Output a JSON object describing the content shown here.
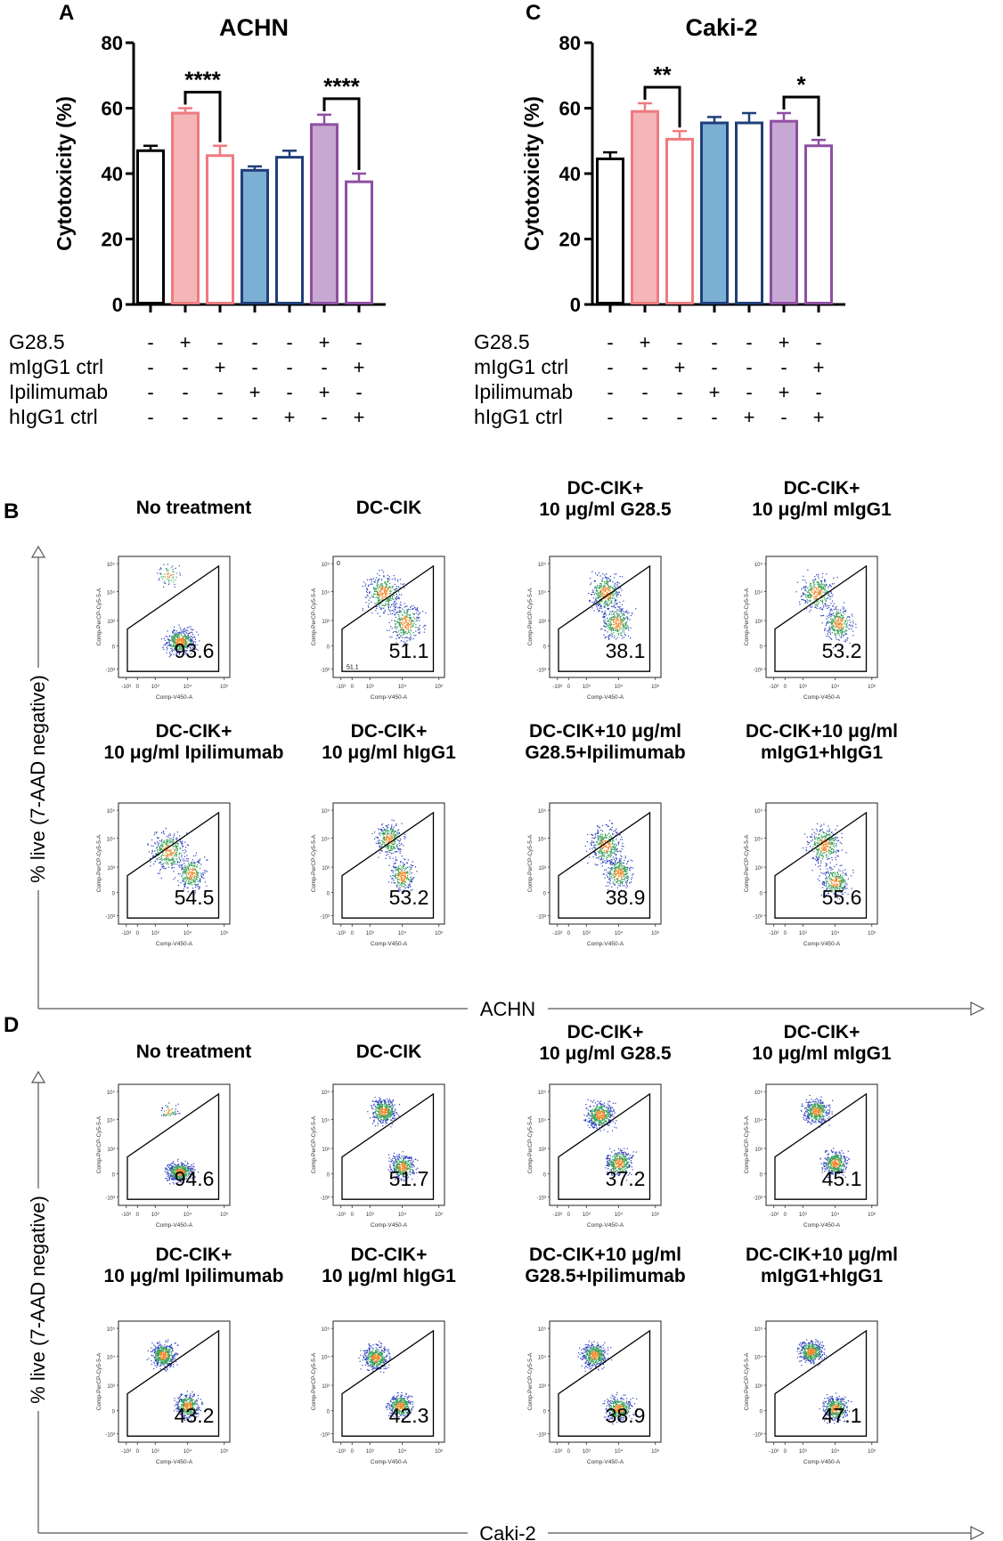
{
  "chart_data": [
    {
      "panel": "A",
      "type": "bar",
      "title": "ACHN",
      "ylabel": "Cytotoxicity (%)",
      "ylim": [
        0,
        80
      ],
      "yticks": [
        "0",
        "20",
        "40",
        "60",
        "80"
      ],
      "values": [
        47,
        58.5,
        45.5,
        41,
        45,
        55,
        37.5
      ],
      "errors": [
        1.5,
        1.5,
        3,
        1.2,
        2,
        3,
        2.5
      ],
      "bar_styles": [
        "open-black",
        "filled-pink",
        "open-pink",
        "filled-blue",
        "open-blue",
        "filled-purple",
        "open-purple"
      ],
      "significance": [
        {
          "from": 1,
          "to": 2,
          "label": "****"
        },
        {
          "from": 5,
          "to": 6,
          "label": "****"
        }
      ],
      "treatment_labels": [
        "G28.5",
        "mIgG1 ctrl",
        "Ipilimumab",
        "hIgG1 ctrl"
      ],
      "treatment_signs": [
        [
          "-",
          "+",
          "-",
          "-",
          "-",
          "+",
          "-"
        ],
        [
          "-",
          "-",
          "+",
          "-",
          "-",
          "-",
          "+"
        ],
        [
          "-",
          "-",
          "-",
          "+",
          "-",
          "+",
          "-"
        ],
        [
          "-",
          "-",
          "-",
          "-",
          "+",
          "-",
          "+"
        ]
      ]
    },
    {
      "panel": "C",
      "type": "bar",
      "title": "Caki-2",
      "ylabel": "Cytotoxicity (%)",
      "ylim": [
        0,
        80
      ],
      "yticks": [
        "0",
        "20",
        "40",
        "60",
        "80"
      ],
      "values": [
        44.5,
        59,
        50.5,
        55.5,
        55.5,
        56,
        48.5
      ],
      "errors": [
        2,
        2.5,
        2.5,
        1.8,
        3,
        2.5,
        1.8
      ],
      "bar_styles": [
        "open-black",
        "filled-pink",
        "open-pink",
        "filled-blue",
        "open-blue",
        "filled-purple",
        "open-purple"
      ],
      "significance": [
        {
          "from": 1,
          "to": 2,
          "label": "**"
        },
        {
          "from": 5,
          "to": 6,
          "label": "*"
        }
      ],
      "treatment_labels": [
        "G28.5",
        "mIgG1 ctrl",
        "Ipilimumab",
        "hIgG1 ctrl"
      ],
      "treatment_signs": [
        [
          "-",
          "+",
          "-",
          "-",
          "-",
          "+",
          "-"
        ],
        [
          "-",
          "-",
          "+",
          "-",
          "-",
          "-",
          "+"
        ],
        [
          "-",
          "-",
          "-",
          "+",
          "-",
          "+",
          "-"
        ],
        [
          "-",
          "-",
          "-",
          "-",
          "+",
          "-",
          "+"
        ]
      ]
    },
    {
      "panel": "B",
      "type": "scatter",
      "cell_line": "ACHN",
      "ylabel": "% live (7-AAD negative)",
      "xlabel": "ACHN",
      "plots": [
        {
          "title": [
            "No treatment"
          ],
          "value": "93.6"
        },
        {
          "title": [
            "DC-CIK"
          ],
          "value": "51.1"
        },
        {
          "title": [
            "DC-CIK+",
            "10 μg/ml G28.5"
          ],
          "value": "38.1"
        },
        {
          "title": [
            "DC-CIK+",
            "10 μg/ml mIgG1"
          ],
          "value": "53.2"
        },
        {
          "title": [
            "DC-CIK+",
            "10 μg/ml Ipilimumab"
          ],
          "value": "54.5"
        },
        {
          "title": [
            "DC-CIK+",
            "10 μg/ml hIgG1"
          ],
          "value": "53.2"
        },
        {
          "title": [
            "DC-CIK+10 μg/ml",
            "G28.5+Ipilimumab"
          ],
          "value": "38.9"
        },
        {
          "title": [
            "DC-CIK+10 μg/ml",
            "mIgG1+hIgG1"
          ],
          "value": "55.6"
        }
      ],
      "dc_cik_extra": {
        "corner": "0",
        "small_gate": "51.1"
      }
    },
    {
      "panel": "D",
      "type": "scatter",
      "cell_line": "Caki-2",
      "ylabel": "% live (7-AAD negative)",
      "xlabel": "Caki-2",
      "plots": [
        {
          "title": [
            "No treatment"
          ],
          "value": "94.6"
        },
        {
          "title": [
            "DC-CIK"
          ],
          "value": "51.7"
        },
        {
          "title": [
            "DC-CIK+",
            "10 μg/ml G28.5"
          ],
          "value": "37.2"
        },
        {
          "title": [
            "DC-CIK+",
            "10 μg/ml mIgG1"
          ],
          "value": "45.1"
        },
        {
          "title": [
            "DC-CIK+",
            "10 μg/ml Ipilimumab"
          ],
          "value": "43.2"
        },
        {
          "title": [
            "DC-CIK+",
            "10 μg/ml hIgG1"
          ],
          "value": "42.3"
        },
        {
          "title": [
            "DC-CIK+10 μg/ml",
            "G28.5+Ipilimumab"
          ],
          "value": "38.9"
        },
        {
          "title": [
            "DC-CIK+10 μg/ml",
            "mIgG1+hIgG1"
          ],
          "value": "47.1"
        }
      ]
    }
  ],
  "flow_axes": {
    "x_label": "Comp-V450-A",
    "y_label": "Comp-PerCP-Cy5-5-A",
    "x_ticks": [
      "-10³",
      "0",
      "10³",
      "10⁴",
      "10⁵"
    ],
    "y_ticks": [
      "10⁵",
      "10⁴",
      "10³",
      "0",
      "-10³"
    ]
  },
  "colors": {
    "black": "#000000",
    "pink_fill": "#f4b6b8",
    "pink_line": "#ef7a80",
    "blue_fill": "#7bafd4",
    "blue_line": "#1f3f7a",
    "purple_fill": "#c7a8d2",
    "purple_line": "#8e4fa3",
    "dot_blue": "#2c3fbf",
    "dot_green": "#3aa05a",
    "dot_orange": "#f08a2a",
    "arrow_grey": "#555555"
  }
}
